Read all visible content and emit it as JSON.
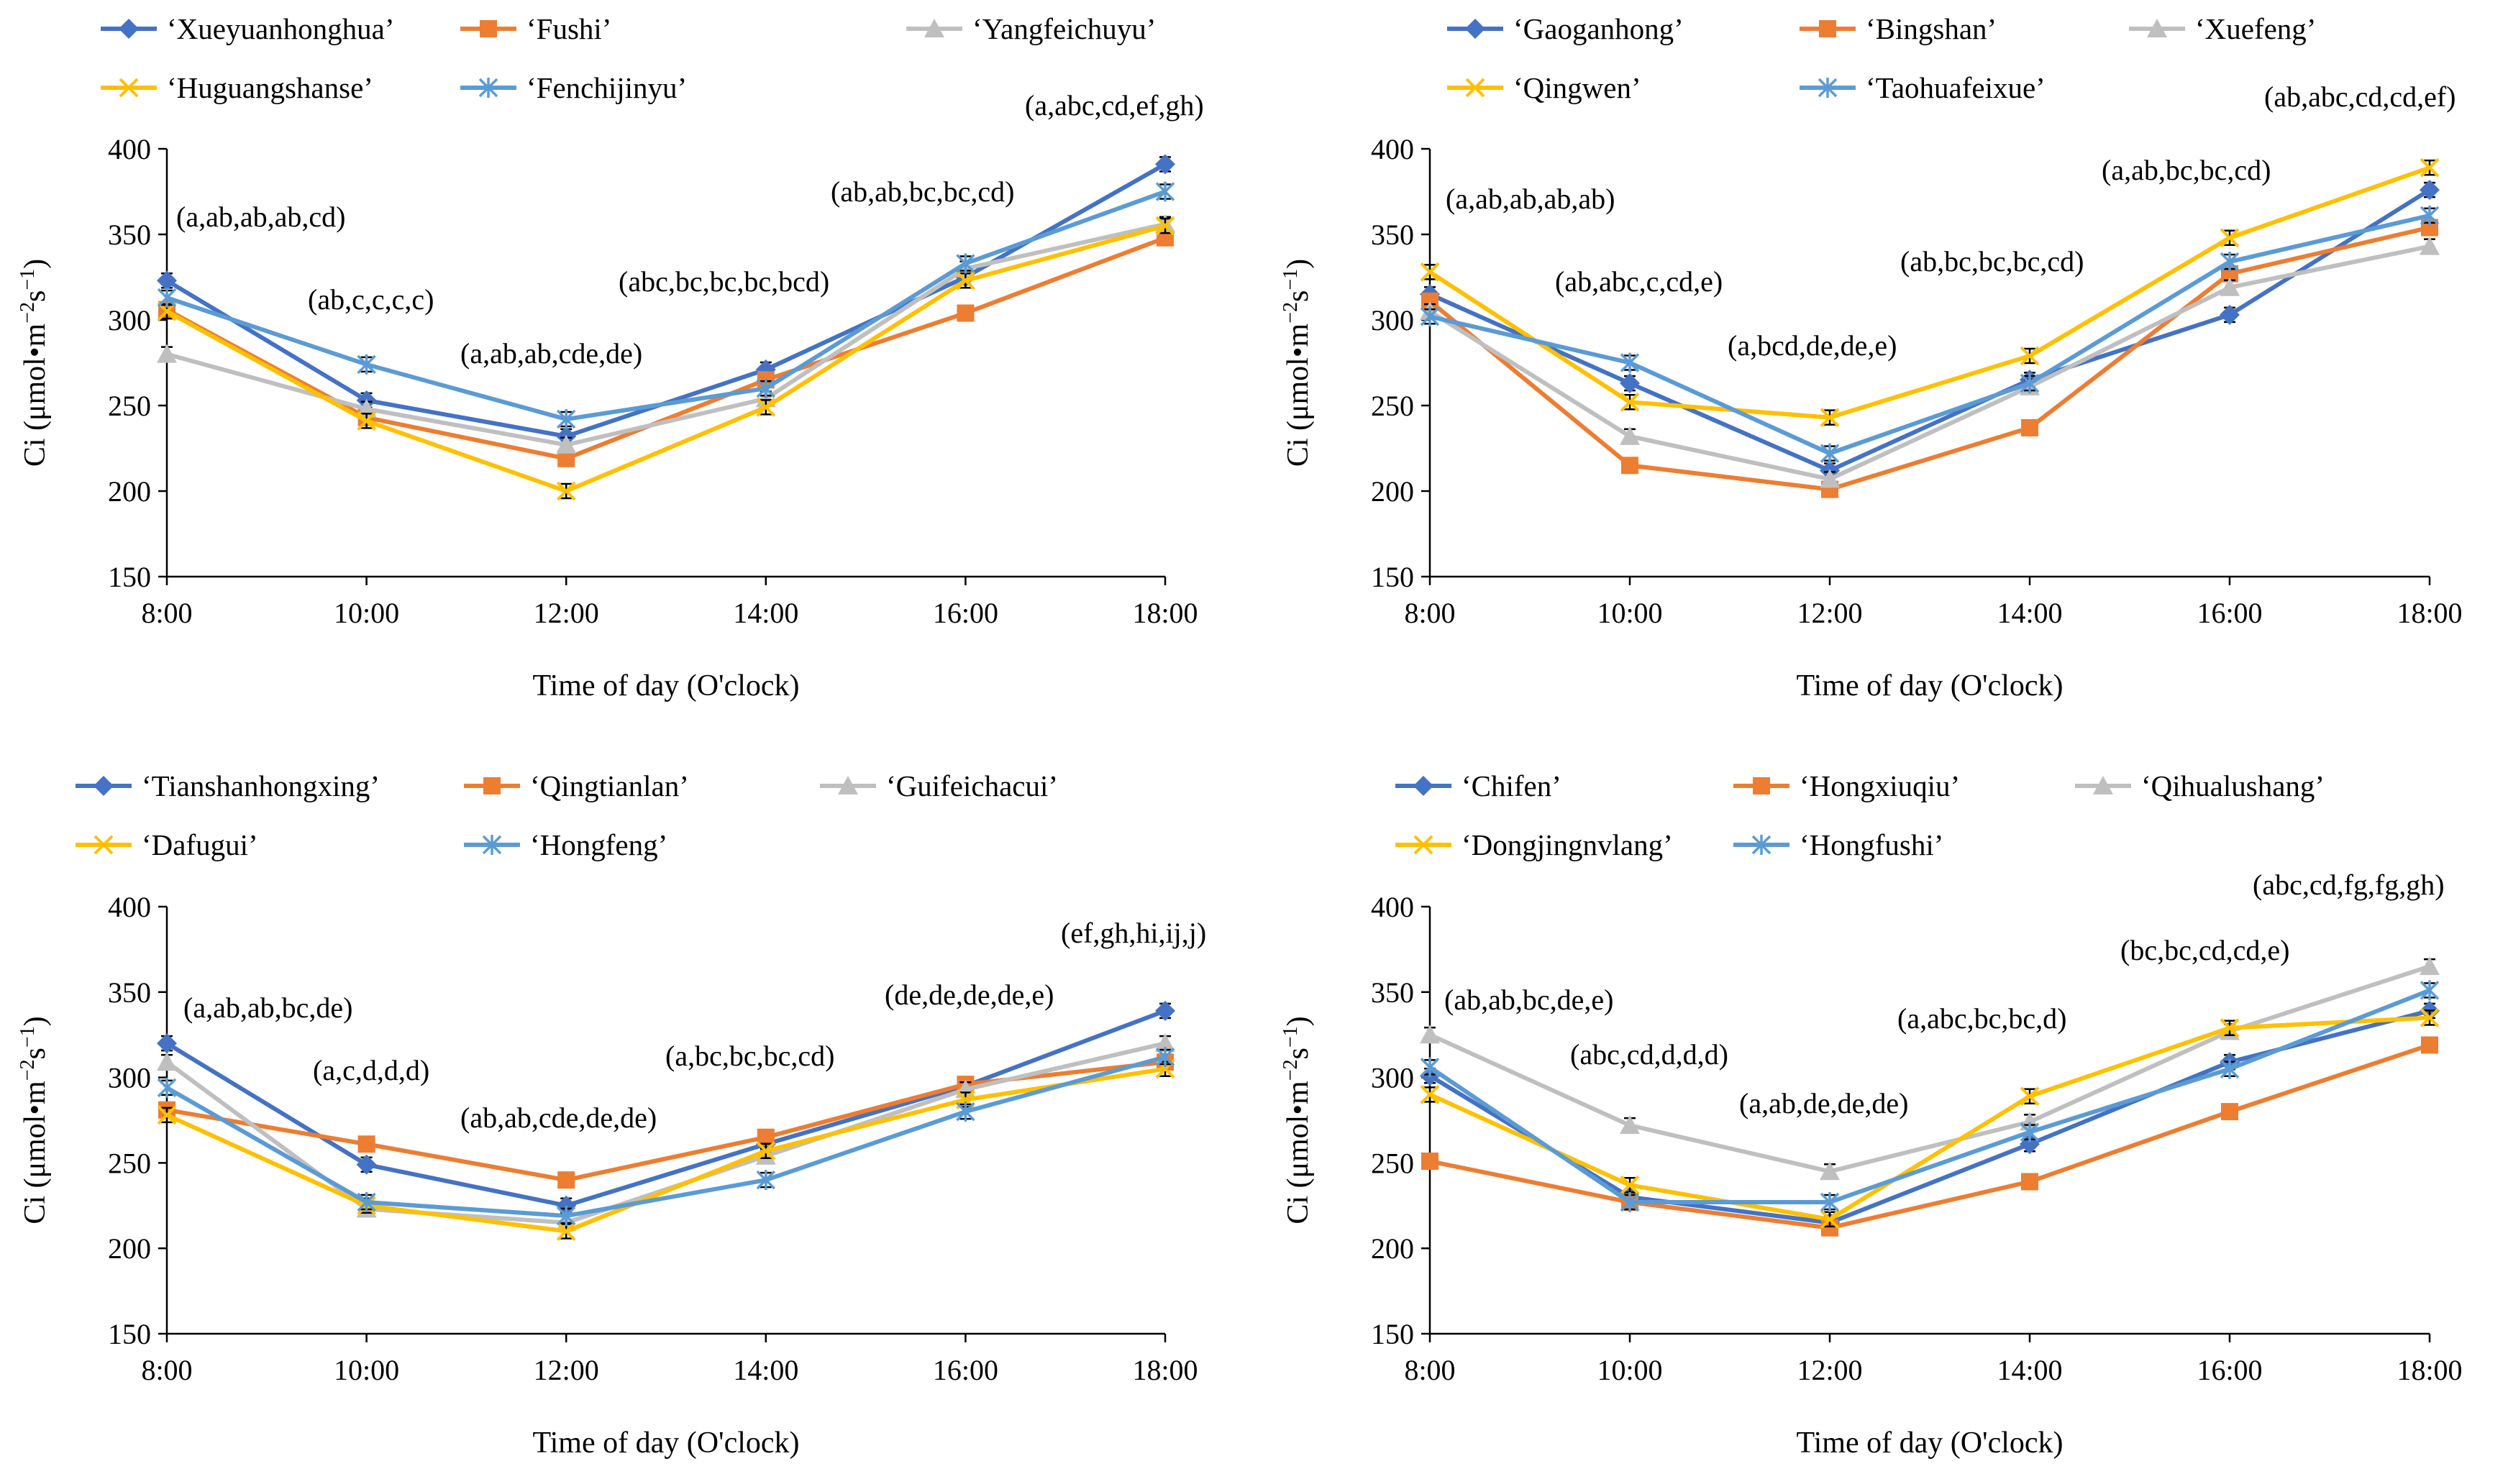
{
  "colors": {
    "blue": "#4472C4",
    "orange": "#ED7D31",
    "gray": "#BFBFBF",
    "yellow": "#FFC000",
    "lightblue": "#5B9BD5",
    "errorbar": "#000000"
  },
  "chart_data": [
    {
      "type": "line",
      "title": "",
      "xlabel": "Time of day (O'clock)",
      "ylabel_main": "Ci (μmol•m",
      "ylabel_exp1": "−2",
      "ylabel_mid": "s",
      "ylabel_exp2": "−1",
      "ylabel_close": ")",
      "ylim": [
        150,
        400
      ],
      "yticks": [
        "150",
        "200",
        "250",
        "300",
        "350",
        "400"
      ],
      "categories": [
        "8:00",
        "10:00",
        "12:00",
        "14:00",
        "16:00",
        "18:00"
      ],
      "series": [
        {
          "name": "‘Xueyuanhonghua’",
          "color": "blue",
          "marker": "diamond",
          "values": [
            323,
            253,
            232,
            271,
            325,
            391
          ]
        },
        {
          "name": "‘Fushi’",
          "color": "orange",
          "marker": "square",
          "values": [
            306,
            243,
            219,
            265,
            304,
            348
          ]
        },
        {
          "name": "‘Yangfeichuyu’",
          "color": "gray",
          "marker": "triangle",
          "values": [
            280,
            248,
            227,
            254,
            330,
            356
          ]
        },
        {
          "name": "‘Huguangshanse’",
          "color": "yellow",
          "marker": "x",
          "values": [
            305,
            241,
            200,
            249,
            323,
            355
          ]
        },
        {
          "name": "‘Fenchijinyu’",
          "color": "lightblue",
          "marker": "star",
          "values": [
            313,
            274,
            242,
            260,
            333,
            375
          ]
        }
      ],
      "annotations": [
        "(a,ab,ab,ab,cd)",
        "(ab,c,c,c,c)",
        "(a,ab,ab,cde,de)",
        "(abc,bc,bc,bc,bcd)",
        "(ab,ab,bc,bc,cd)",
        "(a,abc,cd,ef,gh)"
      ]
    },
    {
      "type": "line",
      "title": "",
      "xlabel": "Time of day (O'clock)",
      "ylabel_main": "Ci (μmol•m",
      "ylabel_exp1": "−2",
      "ylabel_mid": "s",
      "ylabel_exp2": "−1",
      "ylabel_close": ")",
      "ylim": [
        150,
        400
      ],
      "yticks": [
        "150",
        "200",
        "250",
        "300",
        "350",
        "400"
      ],
      "categories": [
        "8:00",
        "10:00",
        "12:00",
        "14:00",
        "16:00",
        "18:00"
      ],
      "series": [
        {
          "name": "‘Gaoganhong’",
          "color": "blue",
          "marker": "diamond",
          "values": [
            315,
            263,
            212,
            265,
            303,
            376
          ]
        },
        {
          "name": "‘Bingshan’",
          "color": "orange",
          "marker": "square",
          "values": [
            311,
            215,
            201,
            237,
            327,
            354
          ]
        },
        {
          "name": "‘Xuefeng’",
          "color": "gray",
          "marker": "triangle",
          "values": [
            305,
            232,
            207,
            261,
            319,
            343
          ]
        },
        {
          "name": "‘Qingwen’",
          "color": "yellow",
          "marker": "x",
          "values": [
            328,
            252,
            243,
            279,
            348,
            389
          ]
        },
        {
          "name": "‘Taohuafeixue’",
          "color": "lightblue",
          "marker": "star",
          "values": [
            302,
            275,
            222,
            263,
            334,
            361
          ]
        }
      ],
      "annotations": [
        "(a,ab,ab,ab,ab)",
        "(ab,abc,c,cd,e)",
        "(a,bcd,de,de,e)",
        "(ab,bc,bc,bc,cd)",
        "(a,ab,bc,bc,cd)",
        "(ab,abc,cd,cd,ef)"
      ]
    },
    {
      "type": "line",
      "title": "",
      "xlabel": "Time of day (O'clock)",
      "ylabel_main": "Ci (μmol•m",
      "ylabel_exp1": "−2",
      "ylabel_mid": "s",
      "ylabel_exp2": "−1",
      "ylabel_close": ")",
      "ylim": [
        150,
        400
      ],
      "yticks": [
        "150",
        "200",
        "250",
        "300",
        "350",
        "400"
      ],
      "categories": [
        "8:00",
        "10:00",
        "12:00",
        "14:00",
        "16:00",
        "18:00"
      ],
      "series": [
        {
          "name": "‘Tianshanhongxing’",
          "color": "blue",
          "marker": "diamond",
          "values": [
            320,
            249,
            225,
            261,
            295,
            339
          ]
        },
        {
          "name": "‘Qingtianlan’",
          "color": "orange",
          "marker": "square",
          "values": [
            281,
            261,
            240,
            265,
            296,
            309
          ]
        },
        {
          "name": "‘Guifeichacui’",
          "color": "gray",
          "marker": "triangle",
          "values": [
            309,
            223,
            215,
            254,
            293,
            320
          ]
        },
        {
          "name": "‘Dafugui’",
          "color": "yellow",
          "marker": "x",
          "values": [
            278,
            225,
            210,
            257,
            287,
            305
          ]
        },
        {
          "name": "‘Hongfeng’",
          "color": "lightblue",
          "marker": "star",
          "values": [
            294,
            227,
            219,
            240,
            280,
            312
          ]
        }
      ],
      "annotations": [
        "(a,ab,ab,bc,de)",
        "(a,c,d,d,d)",
        "(ab,ab,cde,de,de)",
        "(a,bc,bc,bc,cd)",
        "(de,de,de,de,e)",
        "(ef,gh,hi,ij,j)"
      ]
    },
    {
      "type": "line",
      "title": "",
      "xlabel": "Time of day (O'clock)",
      "ylabel_main": "Ci (μmol•m",
      "ylabel_exp1": "−2",
      "ylabel_mid": "s",
      "ylabel_exp2": "−1",
      "ylabel_close": ")",
      "ylim": [
        150,
        400
      ],
      "yticks": [
        "150",
        "200",
        "250",
        "300",
        "350",
        "400"
      ],
      "categories": [
        "8:00",
        "10:00",
        "12:00",
        "14:00",
        "16:00",
        "18:00"
      ],
      "series": [
        {
          "name": "‘Chifen’",
          "color": "blue",
          "marker": "diamond",
          "values": [
            301,
            230,
            215,
            261,
            309,
            339
          ]
        },
        {
          "name": "‘Hongxiuqiu’",
          "color": "orange",
          "marker": "square",
          "values": [
            251,
            227,
            212,
            239,
            280,
            319
          ]
        },
        {
          "name": "‘Qihualushang’",
          "color": "gray",
          "marker": "triangle",
          "values": [
            325,
            272,
            245,
            274,
            327,
            365
          ]
        },
        {
          "name": "‘Dongjingnvlang’",
          "color": "yellow",
          "marker": "x",
          "values": [
            290,
            237,
            217,
            289,
            329,
            335
          ]
        },
        {
          "name": "‘Hongfushi’",
          "color": "lightblue",
          "marker": "star",
          "values": [
            306,
            227,
            227,
            268,
            305,
            351
          ]
        }
      ],
      "annotations": [
        "(ab,ab,bc,de,e)",
        "(abc,cd,d,d,d)",
        "(a,ab,de,de,de)",
        "(a,abc,bc,bc,d)",
        "(bc,bc,cd,cd,e)",
        "(abc,cd,fg,fg,gh)"
      ]
    }
  ]
}
